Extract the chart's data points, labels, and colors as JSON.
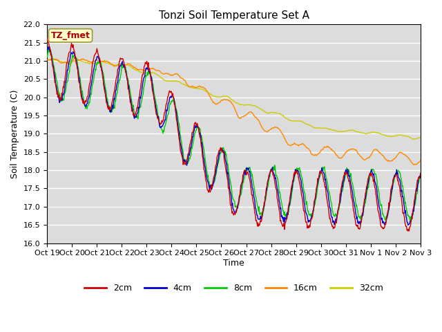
{
  "title": "Tonzi Soil Temperature Set A",
  "ylabel": "Soil Temperature (C)",
  "xlabel": "Time",
  "ylim": [
    16.0,
    22.0
  ],
  "annotation": "TZ_fmet",
  "bg_color": "#dcdcdc",
  "line_colors": {
    "2cm": "#cc0000",
    "4cm": "#0000cc",
    "8cm": "#00cc00",
    "16cm": "#ff8800",
    "32cm": "#cccc00"
  },
  "xtick_labels": [
    "Oct 19",
    "Oct 20",
    "Oct 21",
    "Oct 22",
    "Oct 23",
    "Oct 24",
    "Oct 25",
    "Oct 26",
    "Oct 27",
    "Oct 28",
    "Oct 29",
    "Oct 30",
    "Oct 31",
    "Nov 1",
    "Nov 2",
    "Nov 3"
  ],
  "n_days": 15,
  "n_pts": 720
}
